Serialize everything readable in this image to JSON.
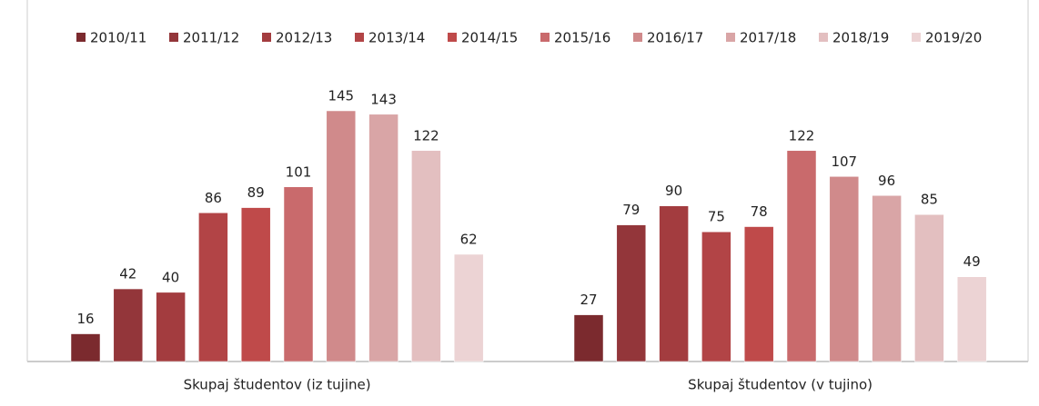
{
  "chart_data": {
    "type": "bar",
    "categories": [
      "Skupaj študentov (iz tujine)",
      "Skupaj študentov (v tujino)"
    ],
    "series": [
      {
        "name": "2010/11",
        "color": "#7b2a2e",
        "values": [
          16,
          27
        ]
      },
      {
        "name": "2011/12",
        "color": "#93363a",
        "values": [
          42,
          79
        ]
      },
      {
        "name": "2012/13",
        "color": "#a33c3f",
        "values": [
          40,
          90
        ]
      },
      {
        "name": "2013/14",
        "color": "#b24446",
        "values": [
          86,
          75
        ]
      },
      {
        "name": "2014/15",
        "color": "#bf4a4a",
        "values": [
          89,
          78
        ]
      },
      {
        "name": "2015/16",
        "color": "#c96a6c",
        "values": [
          101,
          122
        ]
      },
      {
        "name": "2016/17",
        "color": "#d08a8b",
        "values": [
          145,
          107
        ]
      },
      {
        "name": "2017/18",
        "color": "#d9a5a6",
        "values": [
          143,
          96
        ]
      },
      {
        "name": "2018/19",
        "color": "#e3bfc0",
        "values": [
          122,
          85
        ]
      },
      {
        "name": "2019/20",
        "color": "#ecd3d4",
        "values": [
          62,
          49
        ]
      }
    ],
    "legend": "top"
  }
}
